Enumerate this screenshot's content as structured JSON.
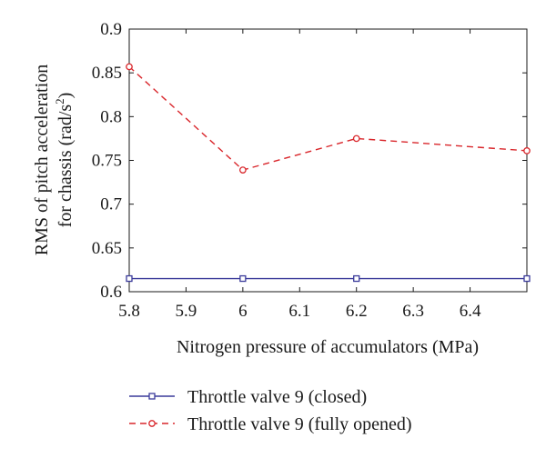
{
  "chart_data": {
    "type": "line",
    "xlabel": "Nitrogen pressure of accumulators (MPa)",
    "ylabel_line1": "RMS of pitch acceleration",
    "ylabel_line2": "for chassis (rad/s",
    "ylabel_sup": "2",
    "ylabel_close": ")",
    "xlim": [
      5.8,
      6.5
    ],
    "ylim": [
      0.6,
      0.9
    ],
    "xticks": [
      5.8,
      5.9,
      6.0,
      6.1,
      6.2,
      6.3,
      6.4,
      6.5
    ],
    "xtick_labels": [
      "5.8",
      "5.9",
      "6",
      "6.1",
      "6.2",
      "6.3",
      "6.4",
      ""
    ],
    "yticks": [
      0.6,
      0.65,
      0.7,
      0.75,
      0.8,
      0.85,
      0.9
    ],
    "ytick_labels": [
      "0.6",
      "0.65",
      "0.7",
      "0.75",
      "0.8",
      "0.85",
      "0.9"
    ],
    "grid": false,
    "legend_position": "bottom",
    "series": [
      {
        "name": "Throttle valve 9 (closed)",
        "color": "#3a3a9a",
        "marker": "square",
        "line_style": "solid",
        "x": [
          5.8,
          6.0,
          6.2,
          6.5
        ],
        "y": [
          0.615,
          0.615,
          0.615,
          0.615
        ]
      },
      {
        "name": "Throttle valve 9 (fully opened)",
        "color": "#d9262b",
        "marker": "circle",
        "line_style": "dashed",
        "x": [
          5.8,
          6.0,
          6.2,
          6.5
        ],
        "y": [
          0.857,
          0.739,
          0.775,
          0.761
        ]
      }
    ]
  }
}
